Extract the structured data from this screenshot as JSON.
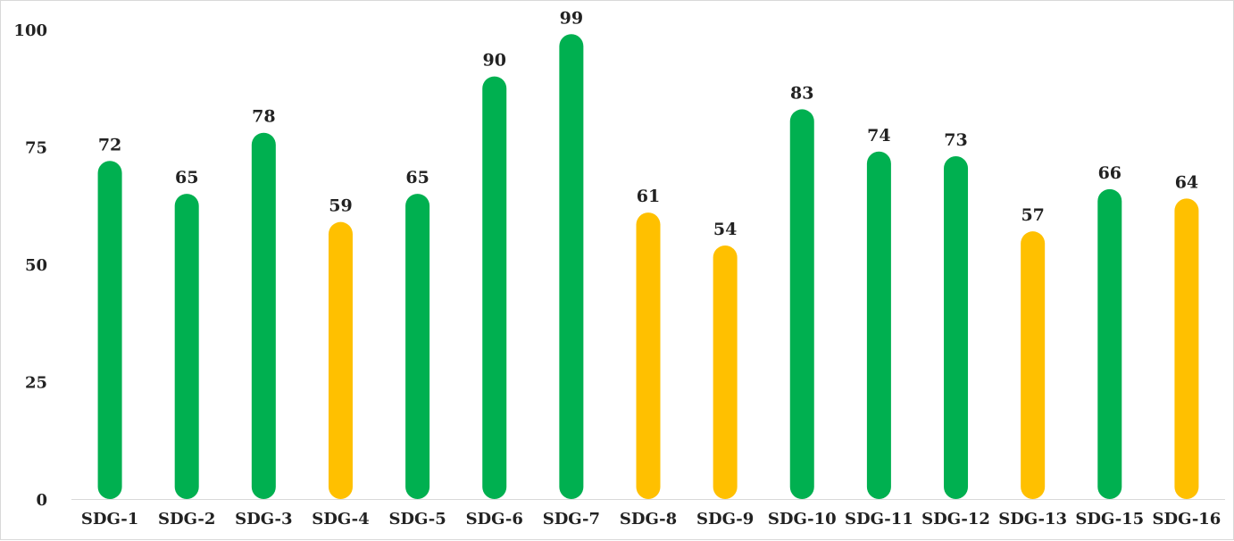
{
  "chart_data": {
    "type": "bar",
    "categories": [
      "SDG-1",
      "SDG-2",
      "SDG-3",
      "SDG-4",
      "SDG-5",
      "SDG-6",
      "SDG-7",
      "SDG-8",
      "SDG-9",
      "SDG-10",
      "SDG-11",
      "SDG-12",
      "SDG-13",
      "SDG-15",
      "SDG-16"
    ],
    "values": [
      72,
      65,
      78,
      59,
      65,
      90,
      99,
      61,
      54,
      83,
      74,
      73,
      57,
      66,
      64
    ],
    "bar_colors": [
      "#00b050",
      "#00b050",
      "#00b050",
      "#ffc000",
      "#00b050",
      "#00b050",
      "#00b050",
      "#ffc000",
      "#ffc000",
      "#00b050",
      "#00b050",
      "#00b050",
      "#ffc000",
      "#00b050",
      "#ffc000"
    ],
    "y_ticks": [
      "0",
      "25",
      "50",
      "75",
      "100"
    ],
    "ylim": [
      0,
      100
    ],
    "title": "",
    "xlabel": "",
    "ylabel": "",
    "grid": false,
    "legend": "none",
    "data_labels": true
  },
  "colors": {
    "green": "#00b050",
    "amber": "#ffc000",
    "axis": "#d9d9d9",
    "text": "#222222"
  }
}
